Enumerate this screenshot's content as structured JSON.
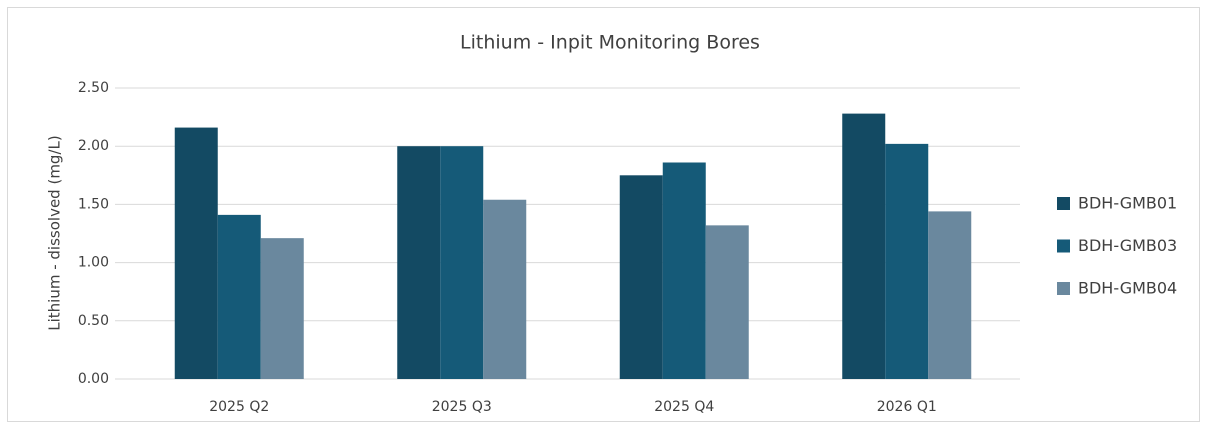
{
  "chart_data": {
    "type": "bar",
    "title": "Lithium - Inpit Monitoring Bores",
    "y_label": "Lithium - dissolved (mg/L)",
    "categories": [
      "2025 Q2",
      "2025 Q3",
      "2025 Q4",
      "2026 Q1"
    ],
    "series": [
      {
        "name": "BDH-GMB01",
        "color": "#134a63",
        "values": [
          2.16,
          2.0,
          1.75,
          2.28
        ]
      },
      {
        "name": "BDH-GMB03",
        "color": "#155a78",
        "values": [
          1.41,
          2.0,
          1.86,
          2.02
        ]
      },
      {
        "name": "BDH-GMB04",
        "color": "#6a889e",
        "values": [
          1.21,
          1.54,
          1.32,
          1.44
        ]
      }
    ],
    "ylim": [
      0,
      2.5
    ],
    "yticks": [
      {
        "value": 0,
        "label": "0.00"
      },
      {
        "value": 0.5,
        "label": "0.50"
      },
      {
        "value": 1,
        "label": "1.00"
      },
      {
        "value": 1.5,
        "label": "1.50"
      },
      {
        "value": 2,
        "label": "2.00"
      },
      {
        "value": 2.5,
        "label": "2.50"
      }
    ],
    "grid": true,
    "legend": "right"
  }
}
